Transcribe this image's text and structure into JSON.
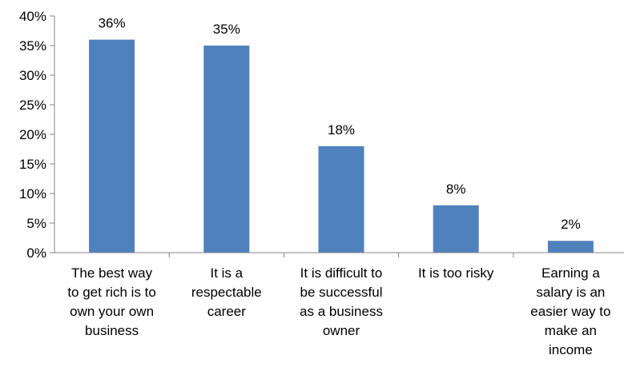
{
  "chart_data": {
    "type": "bar",
    "categories": [
      "The best way\nto get rich is to\nown your own\nbusiness",
      "It is a\nrespectable\ncareer",
      "It is difficult to\nbe successful\nas a business\nowner",
      "It is too risky",
      "Earning a\nsalary is an\neasier way to\nmake an\nincome"
    ],
    "values": [
      36,
      35,
      18,
      8,
      2
    ],
    "data_labels": [
      "36%",
      "35%",
      "18%",
      "8%",
      "2%"
    ],
    "ylim": [
      0,
      40
    ],
    "yticks": [
      0,
      5,
      10,
      15,
      20,
      25,
      30,
      35,
      40
    ],
    "ytick_labels": [
      "0%",
      "5%",
      "10%",
      "15%",
      "20%",
      "25%",
      "30%",
      "35%",
      "40%"
    ],
    "grid": false,
    "bar_color": "#4F81BD"
  }
}
